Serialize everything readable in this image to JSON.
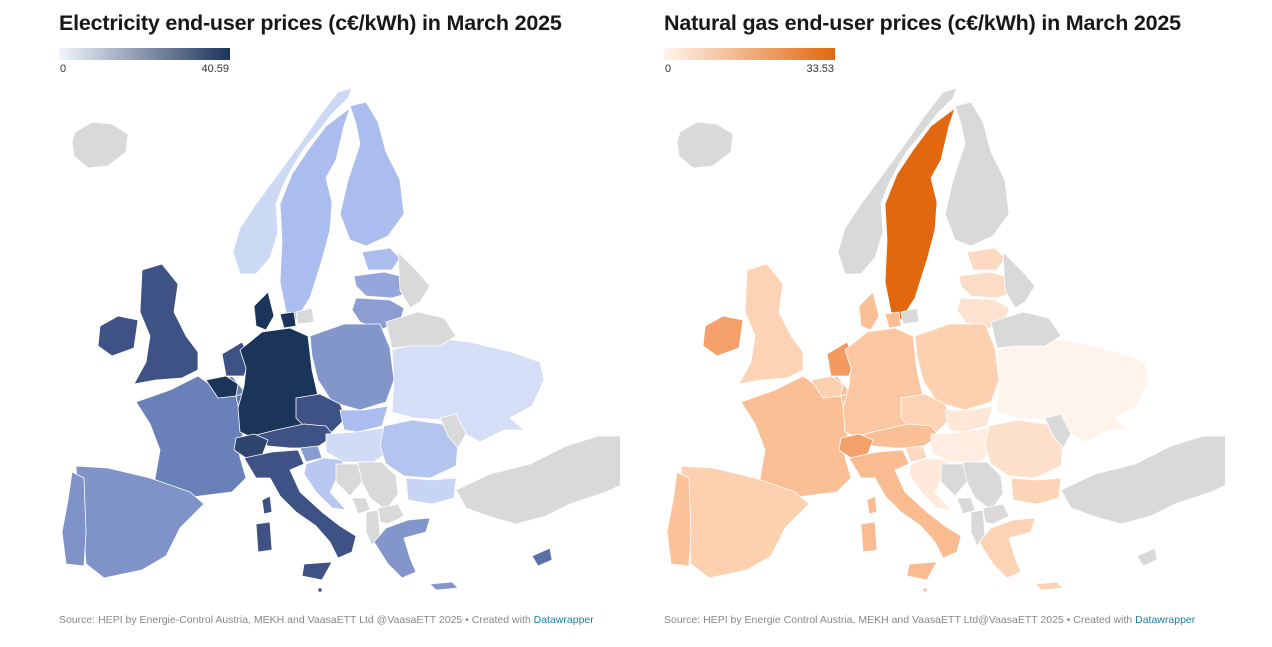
{
  "charts": [
    {
      "title": "Electricity end-user prices (c€/kWh) in March 2025",
      "legend": {
        "min_label": "0",
        "max_label": "40.59",
        "color_low": "#f2f5fd",
        "color_high": "#1b345a"
      },
      "source": "Source: HEPI by Energie-Control Austria, MEKH and VaasaETT Ltd @VaasaETT 2025 • Created with ",
      "credit": "Datawrapper",
      "regions": {
        "iceland": "#d9d9d9",
        "norway": "#ccd9f5",
        "sweden": "#aabdee",
        "finland": "#aabdee",
        "estonia": "#aabdee",
        "latvia": "#94a6dc",
        "lithuania": "#8c9dd2",
        "ireland": "#3e5285",
        "uk": "#3e5285",
        "france": "#6a80b8",
        "spain": "#7f93c8",
        "portugal": "#7f93c8",
        "belgium": "#1b345a",
        "netherlands": "#3e5285",
        "luxembourg": "#5a70a8",
        "germany": "#1b345a",
        "denmark": "#1b345a",
        "poland": "#8296cc",
        "czechia": "#3e5285",
        "slovakia": "#aabdee",
        "austria": "#3e5285",
        "switzerland": "#2e4570",
        "italy": "#3e5285",
        "slovenia": "#8a9dd3",
        "croatia": "#b8c8f0",
        "hungary": "#d0dbf6",
        "romania": "#b3c4ef",
        "bulgaria": "#c7d4f4",
        "serbia": "#d9d9d9",
        "bosnia": "#d9d9d9",
        "montenegro": "#d9d9d9",
        "albania": "#d9d9d9",
        "north-macedonia": "#d9d9d9",
        "greece": "#8296cc",
        "cyprus": "#5a70a8",
        "ukraine": "#d4def7",
        "belarus": "#d9d9d9",
        "moldova": "#d9d9d9",
        "turkey": "#d9d9d9",
        "russia": "#d9d9d9",
        "malta": "#3e5285"
      }
    },
    {
      "title": "Natural gas end-user prices (c€/kWh) in March 2025",
      "legend": {
        "min_label": "0",
        "max_label": "33.53",
        "color_low": "#fff4ec",
        "color_high": "#e2680f"
      },
      "source": "Source: HEPI by Energie Control Austria, MEKH and VaasaETT Ltd@VaasaETT 2025 • Created with ",
      "credit": "Datawrapper",
      "regions": {
        "iceland": "#d9d9d9",
        "norway": "#d9d9d9",
        "sweden": "#e2680f",
        "finland": "#d9d9d9",
        "estonia": "#fdd9c0",
        "latvia": "#fddcc5",
        "lithuania": "#fde2cf",
        "ireland": "#f4a06a",
        "uk": "#fdd3b5",
        "france": "#fbbf96",
        "spain": "#fdd0b0",
        "portugal": "#fbc29c",
        "belgium": "#fdd0b0",
        "netherlands": "#f39a60",
        "luxembourg": "#fbc29c",
        "germany": "#fbc7a3",
        "denmark": "#fbbf96",
        "poland": "#fdd0b0",
        "czechia": "#fdd3b5",
        "slovakia": "#fee7d6",
        "austria": "#fbbf96",
        "switzerland": "#f4a06a",
        "italy": "#fbbb90",
        "slovenia": "#fdd9c0",
        "croatia": "#fee9da",
        "hungary": "#ffede1",
        "romania": "#fde0cc",
        "bulgaria": "#fcd5b8",
        "serbia": "#d9d9d9",
        "bosnia": "#d9d9d9",
        "montenegro": "#d9d9d9",
        "albania": "#d9d9d9",
        "north-macedonia": "#d9d9d9",
        "greece": "#fdd3b5",
        "cyprus": "#d9d9d9",
        "ukraine": "#fff4ec",
        "belarus": "#d9d9d9",
        "moldova": "#d9d9d9",
        "turkey": "#d9d9d9",
        "russia": "#d9d9d9",
        "malta": "#fbc29c"
      }
    }
  ]
}
